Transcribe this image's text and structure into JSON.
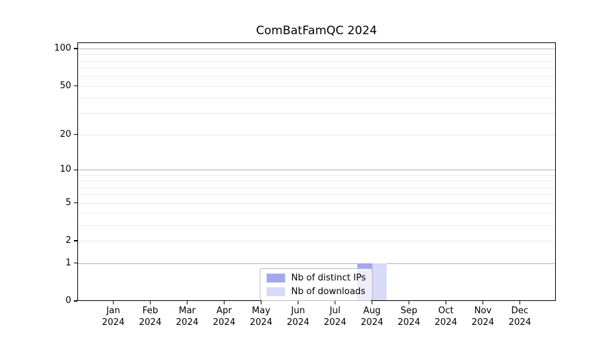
{
  "chart_data": {
    "type": "bar",
    "title": "ComBatFamQC 2024",
    "categories": [
      {
        "month": "Jan",
        "year": "2024"
      },
      {
        "month": "Feb",
        "year": "2024"
      },
      {
        "month": "Mar",
        "year": "2024"
      },
      {
        "month": "Apr",
        "year": "2024"
      },
      {
        "month": "May",
        "year": "2024"
      },
      {
        "month": "Jun",
        "year": "2024"
      },
      {
        "month": "Jul",
        "year": "2024"
      },
      {
        "month": "Aug",
        "year": "2024"
      },
      {
        "month": "Sep",
        "year": "2024"
      },
      {
        "month": "Oct",
        "year": "2024"
      },
      {
        "month": "Nov",
        "year": "2024"
      },
      {
        "month": "Dec",
        "year": "2024"
      }
    ],
    "series": [
      {
        "name": "Nb of distinct IPs",
        "color": "#a6a6f0",
        "values": [
          0,
          0,
          0,
          0,
          0,
          0,
          0,
          1,
          0,
          0,
          0,
          0
        ]
      },
      {
        "name": "Nb of downloads",
        "color": "#d9d9f8",
        "values": [
          0,
          0,
          0,
          0,
          0,
          0,
          0,
          1,
          0,
          0,
          0,
          0
        ]
      }
    ],
    "y_axis": {
      "scale": "log1p",
      "range": [
        0,
        100
      ],
      "labeled_ticks": [
        0,
        1,
        2,
        5,
        10,
        20,
        50,
        100
      ],
      "emphasized_gridlines": [
        1,
        10,
        100
      ],
      "minor_gridlines": [
        2,
        3,
        4,
        5,
        6,
        7,
        8,
        9,
        20,
        30,
        40,
        50,
        60,
        70,
        80,
        90
      ]
    },
    "legend": {
      "position": "lower center"
    },
    "grid": true
  },
  "colors": {
    "background": "#ffffff",
    "spine": "#000000",
    "emphasized_grid": "#b3b3b3",
    "minor_grid": "#ececec",
    "tick_label": "#000000",
    "legend_border": "#b6b6b6"
  }
}
